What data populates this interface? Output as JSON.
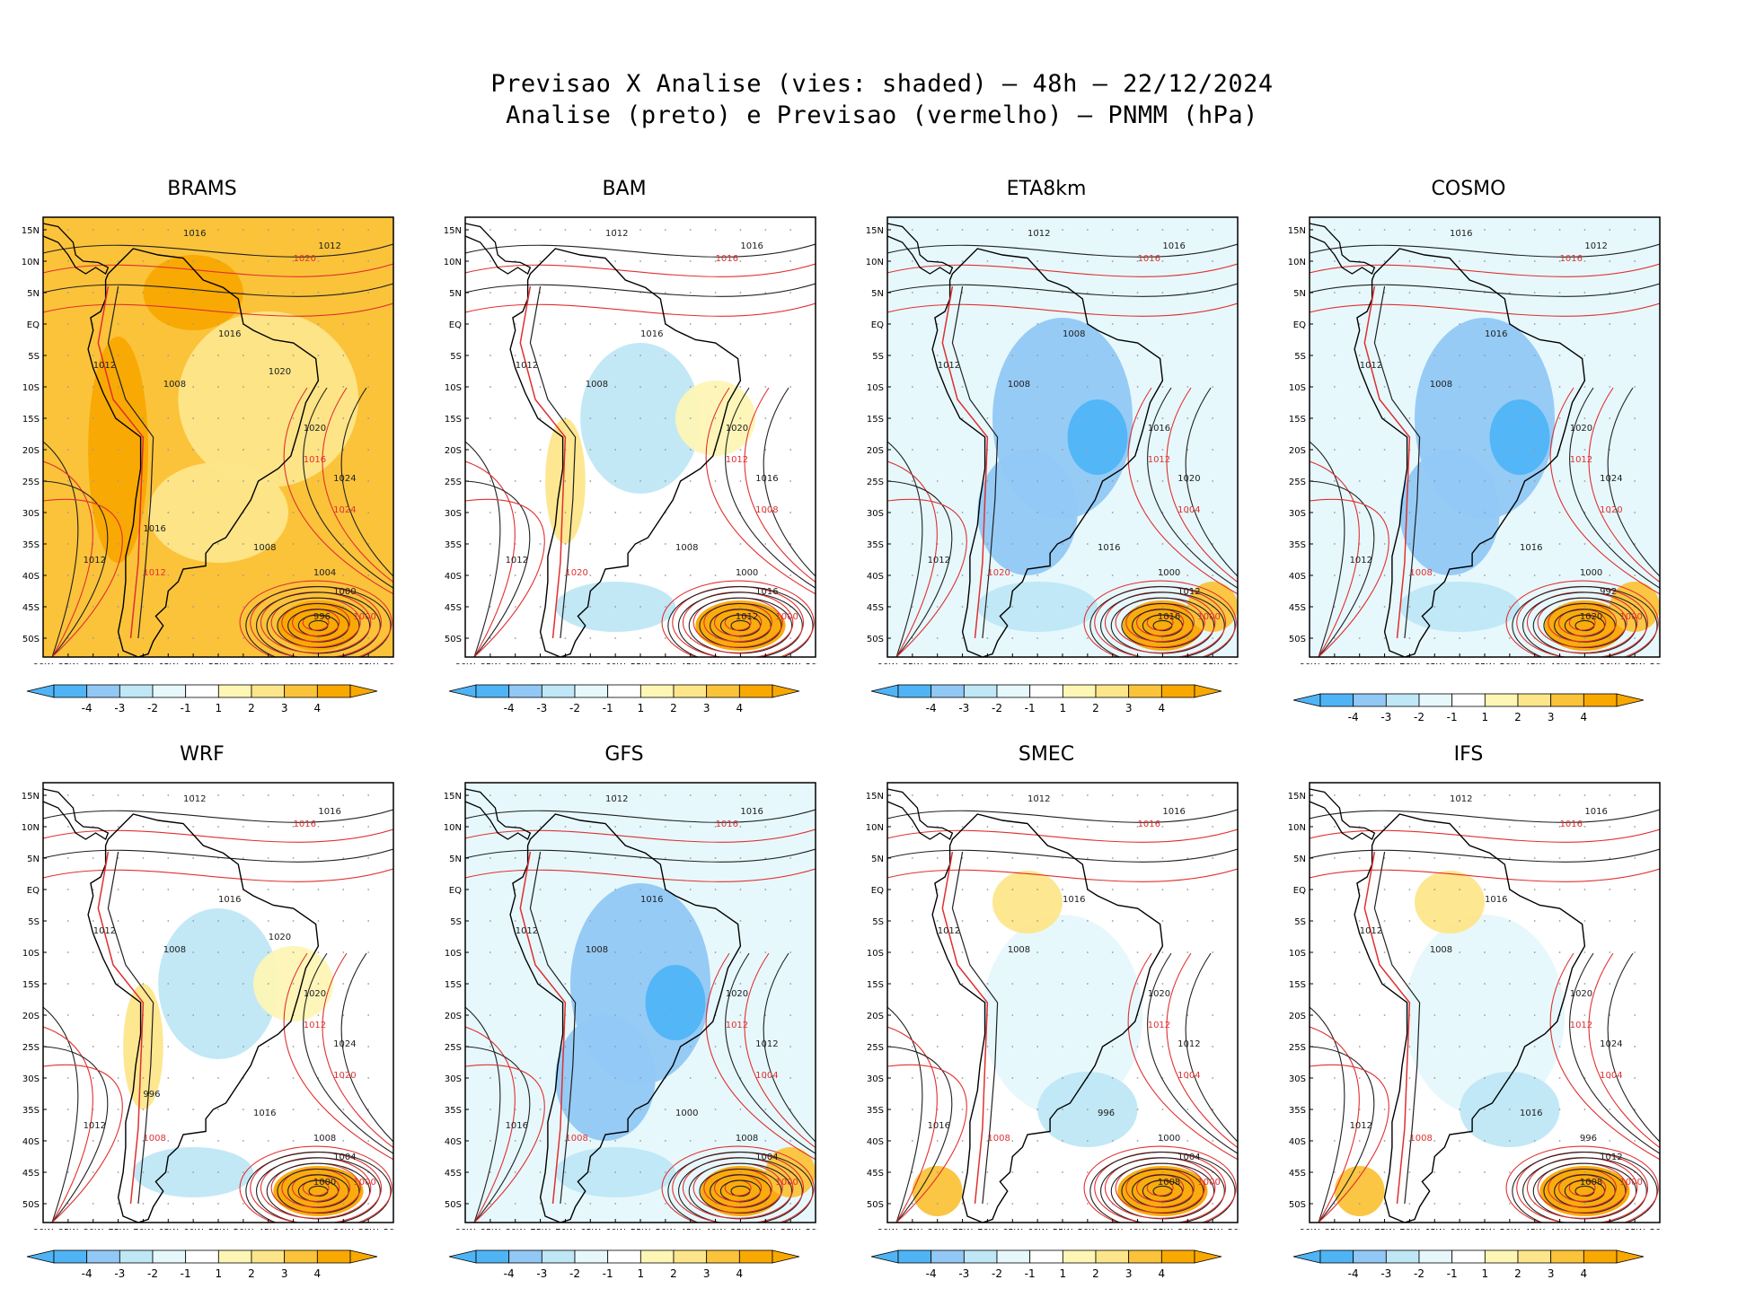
{
  "header": {
    "line1": "Previsao X Analise (vies: shaded) – 48h – 22/12/2024",
    "line2": "Analise (preto) e Previsao (vermelho) – PNMM (hPa)"
  },
  "colors": {
    "neg4": "#4fb4f5",
    "neg3": "#91c8f5",
    "neg2": "#bfe7f6",
    "neg1": "#e6f8fc",
    "zero": "#ffffff",
    "pos1": "#fdf6b4",
    "pos2": "#fde68a",
    "pos3": "#fbc33a",
    "pos4": "#f9a800",
    "analysis": "#202020",
    "forecast": "#e03030",
    "land": "#000000",
    "grid": "#9a9a9a"
  },
  "axes": {
    "lon_labels": [
      "90W",
      "85W",
      "80W",
      "75W",
      "70W",
      "65W",
      "60W",
      "55W",
      "50W",
      "45W",
      "40W",
      "35W",
      "30W",
      "25W",
      "20W"
    ],
    "lat_labels": [
      "15N",
      "10N",
      "5N",
      "EQ",
      "5S",
      "10S",
      "15S",
      "20S",
      "25S",
      "30S",
      "35S",
      "40S",
      "45S",
      "50S"
    ]
  },
  "colorbar": {
    "labels": [
      "-4",
      "-3",
      "-2",
      "-1",
      "1",
      "2",
      "3",
      "4"
    ]
  },
  "panels": [
    {
      "name": "BRAMS",
      "bias": "warm",
      "isobars": [
        "1016",
        "1012",
        "1008",
        "1012",
        "1016",
        "1020",
        "1024",
        "1012",
        "1008",
        "1004",
        "1000",
        "996",
        "1016",
        "1020"
      ],
      "forecast_labels": [
        "1020",
        "1016",
        "1012",
        "1024",
        "1000"
      ]
    },
    {
      "name": "BAM",
      "bias": "mixed",
      "isobars": [
        "1012",
        "1016",
        "1008",
        "1012",
        "1016",
        "1020",
        "1016",
        "1012",
        "1008",
        "1000",
        "1016",
        "1012"
      ],
      "forecast_labels": [
        "1016",
        "1012",
        "1020",
        "1008",
        "1000"
      ]
    },
    {
      "name": "ETA8km",
      "bias": "cold",
      "isobars": [
        "1012",
        "1016",
        "1008",
        "1012",
        "1008",
        "1016",
        "1020",
        "1012",
        "1016",
        "1000",
        "1012",
        "1016"
      ],
      "forecast_labels": [
        "1016",
        "1012",
        "1020",
        "1004",
        "1000"
      ]
    },
    {
      "name": "COSMO",
      "bias": "cold",
      "isobars": [
        "1016",
        "1012",
        "1008",
        "1012",
        "1016",
        "1020",
        "1024",
        "1012",
        "1016",
        "1000",
        "992",
        "1020"
      ],
      "forecast_labels": [
        "1016",
        "1012",
        "1008",
        "1020",
        "1000"
      ]
    },
    {
      "name": "WRF",
      "bias": "mixed",
      "isobars": [
        "1012",
        "1016",
        "1008",
        "1012",
        "1016",
        "1020",
        "1024",
        "1012",
        "1016",
        "1008",
        "1004",
        "1000",
        "996",
        "1020"
      ],
      "forecast_labels": [
        "1016",
        "1012",
        "1008",
        "1020",
        "1000"
      ]
    },
    {
      "name": "GFS",
      "bias": "cold",
      "isobars": [
        "1012",
        "1016",
        "1008",
        "1012",
        "1016",
        "1020",
        "1012",
        "1016",
        "1000",
        "1008",
        "1004"
      ],
      "forecast_labels": [
        "1016",
        "1012",
        "1008",
        "1004",
        "1000"
      ]
    },
    {
      "name": "SMEC",
      "bias": "neutral",
      "isobars": [
        "1012",
        "1016",
        "1008",
        "1012",
        "1016",
        "1020",
        "1012",
        "1016",
        "996",
        "1000",
        "1004",
        "1008"
      ],
      "forecast_labels": [
        "1016",
        "1012",
        "1008",
        "1004",
        "1000"
      ]
    },
    {
      "name": "IFS",
      "bias": "neutral",
      "isobars": [
        "1012",
        "1016",
        "1008",
        "1012",
        "1016",
        "1020",
        "1024",
        "1012",
        "1016",
        "996",
        "1012",
        "1008"
      ],
      "forecast_labels": [
        "1016",
        "1012",
        "1008",
        "1004",
        "1000"
      ]
    }
  ]
}
